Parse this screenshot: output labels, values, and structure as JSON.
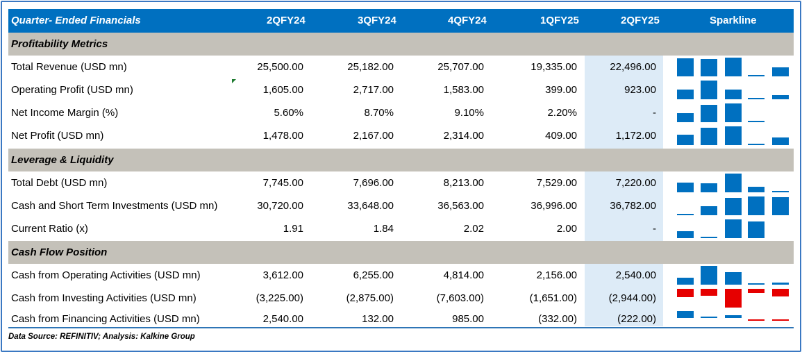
{
  "header": {
    "title": "Quarter- Ended Financials",
    "columns": [
      "2QFY24",
      "3QFY24",
      "4QFY24",
      "1QFY25",
      "2QFY25"
    ],
    "sparkline_label": "Sparkline"
  },
  "colors": {
    "header_bg": "#0070c0",
    "section_bg": "#c4c1b9",
    "highlight_col": "#ddebf7",
    "positive_bar": "#0070c0",
    "negative_bar": "#e60000"
  },
  "sections": [
    {
      "title": "Profitability Metrics",
      "rows": [
        {
          "label": "Total Revenue (USD mn)",
          "values": [
            "25,500.00",
            "25,182.00",
            "25,707.00",
            "19,335.00",
            "22,496.00"
          ],
          "spark": [
            25500,
            25182,
            25707,
            19335,
            22496
          ]
        },
        {
          "label": "Operating Profit (USD mn)",
          "values": [
            "1,605.00",
            "2,717.00",
            "1,583.00",
            "399.00",
            "923.00"
          ],
          "spark": [
            1605,
            2717,
            1583,
            399,
            923
          ]
        },
        {
          "label": "Net Income Margin (%)",
          "values": [
            "5.60%",
            "8.70%",
            "9.10%",
            "2.20%",
            "-"
          ],
          "spark": [
            5.6,
            8.7,
            9.1,
            2.2,
            null
          ]
        },
        {
          "label": "Net Profit (USD mn)",
          "values": [
            "1,478.00",
            "2,167.00",
            "2,314.00",
            "409.00",
            "1,172.00"
          ],
          "spark": [
            1478,
            2167,
            2314,
            409,
            1172
          ]
        }
      ]
    },
    {
      "title": "Leverage & Liquidity",
      "rows": [
        {
          "label": "Total Debt (USD mn)",
          "values": [
            "7,745.00",
            "7,696.00",
            "8,213.00",
            "7,529.00",
            "7,220.00"
          ],
          "spark": [
            7745,
            7696,
            8213,
            7529,
            7220
          ]
        },
        {
          "label": "Cash and Short Term Investments (USD mn)",
          "values": [
            "30,720.00",
            "33,648.00",
            "36,563.00",
            "36,996.00",
            "36,782.00"
          ],
          "spark": [
            30720,
            33648,
            36563,
            36996,
            36782
          ]
        },
        {
          "label": "Current Ratio (x)",
          "values": [
            "1.91",
            "1.84",
            "2.02",
            "2.00",
            "-"
          ],
          "spark": [
            1.91,
            1.84,
            2.02,
            2.0,
            null
          ]
        }
      ]
    },
    {
      "title": "Cash Flow Position",
      "rows": [
        {
          "label": "Cash from Operating Activities (USD mn)",
          "values": [
            "3,612.00",
            "6,255.00",
            "4,814.00",
            "2,156.00",
            "2,540.00"
          ],
          "spark": [
            3612,
            6255,
            4814,
            2156,
            2540
          ]
        },
        {
          "label": "Cash from Investing Activities (USD mn)",
          "values": [
            "(3,225.00)",
            "(2,875.00)",
            "(7,603.00)",
            "(1,651.00)",
            "(2,944.00)"
          ],
          "spark": [
            -3225,
            -2875,
            -7603,
            -1651,
            -2944
          ]
        },
        {
          "label": "Cash from Financing Activities (USD mn)",
          "values": [
            "2,540.00",
            "132.00",
            "985.00",
            "(332.00)",
            "(222.00)"
          ],
          "spark": [
            2540,
            132,
            985,
            -332,
            -222
          ]
        }
      ]
    }
  ],
  "footer": "Data Source: REFINITIV; Analysis: Kalkine Group"
}
